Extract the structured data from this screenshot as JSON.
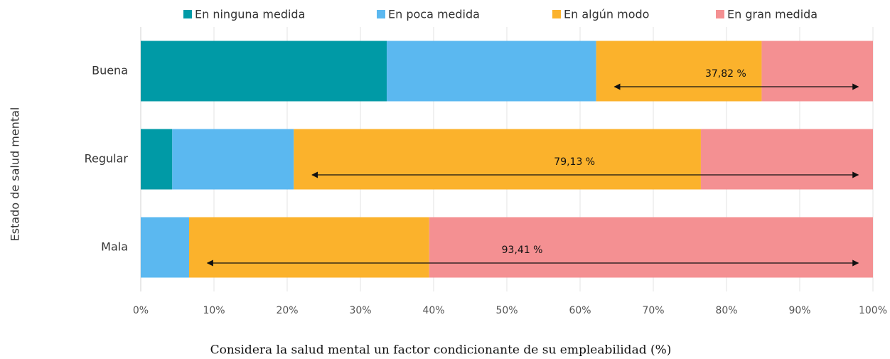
{
  "chart_data": {
    "type": "stacked_bar_horizontal",
    "x_axis_label": "Considera la salud mental un factor condicionante de su empleabilidad (%)",
    "y_axis_label": "Estado de salud mental",
    "categories": [
      "Buena",
      "Regular",
      "Mala"
    ],
    "series": [
      {
        "name": "En ninguna medida",
        "color": "#009aa6",
        "values": [
          33.6,
          4.3,
          0
        ]
      },
      {
        "name": "En poca medida",
        "color": "#5bb8f0",
        "values": [
          28.6,
          16.6,
          6.6
        ]
      },
      {
        "name": "En algún modo",
        "color": "#fbb22c",
        "values": [
          22.6,
          55.6,
          32.8
        ]
      },
      {
        "name": "En gran medida",
        "color": "#f49092",
        "values": [
          15.2,
          23.5,
          60.6
        ]
      }
    ],
    "annotations": [
      "37,82 %",
      "79,13 %",
      "93,41 %"
    ],
    "xlim": [
      0,
      100
    ],
    "xticks": [
      {
        "value": 0,
        "label": "0%"
      },
      {
        "value": 10,
        "label": "10%"
      },
      {
        "value": 20,
        "label": "20%"
      },
      {
        "value": 30,
        "label": "30%"
      },
      {
        "value": 40,
        "label": "40%"
      },
      {
        "value": 50,
        "label": "50%"
      },
      {
        "value": 60,
        "label": "60%"
      },
      {
        "value": 70,
        "label": "70%"
      },
      {
        "value": 80,
        "label": "80%"
      },
      {
        "value": 90,
        "label": "90%"
      },
      {
        "value": 100,
        "label": "100%"
      }
    ],
    "grid": true,
    "legend": "top"
  }
}
